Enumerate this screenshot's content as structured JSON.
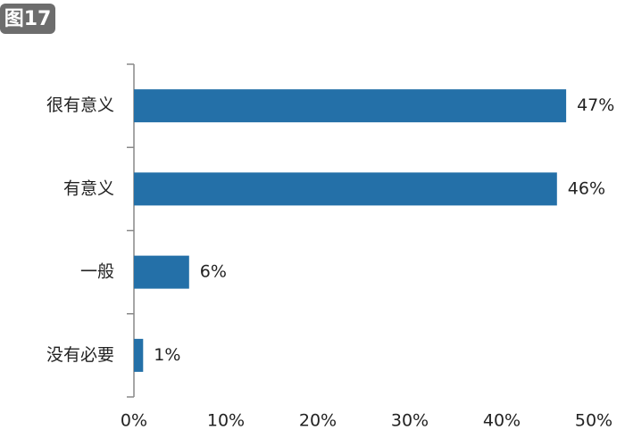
{
  "figure_label": "图17",
  "chart_data": {
    "type": "bar",
    "orientation": "horizontal",
    "categories": [
      "很有意义",
      "有意义",
      "一般",
      "没有必要"
    ],
    "values": [
      47,
      46,
      6,
      1
    ],
    "value_labels": [
      "47%",
      "46%",
      "6%",
      "1%"
    ],
    "color": "#2470a8",
    "xlim": [
      0,
      50
    ],
    "xticks": [
      {
        "value": 0,
        "label": "0%"
      },
      {
        "value": 10,
        "label": "10%"
      },
      {
        "value": 20,
        "label": "20%"
      },
      {
        "value": 30,
        "label": "30%"
      },
      {
        "value": 40,
        "label": "40%"
      },
      {
        "value": 50,
        "label": "50%"
      }
    ]
  }
}
